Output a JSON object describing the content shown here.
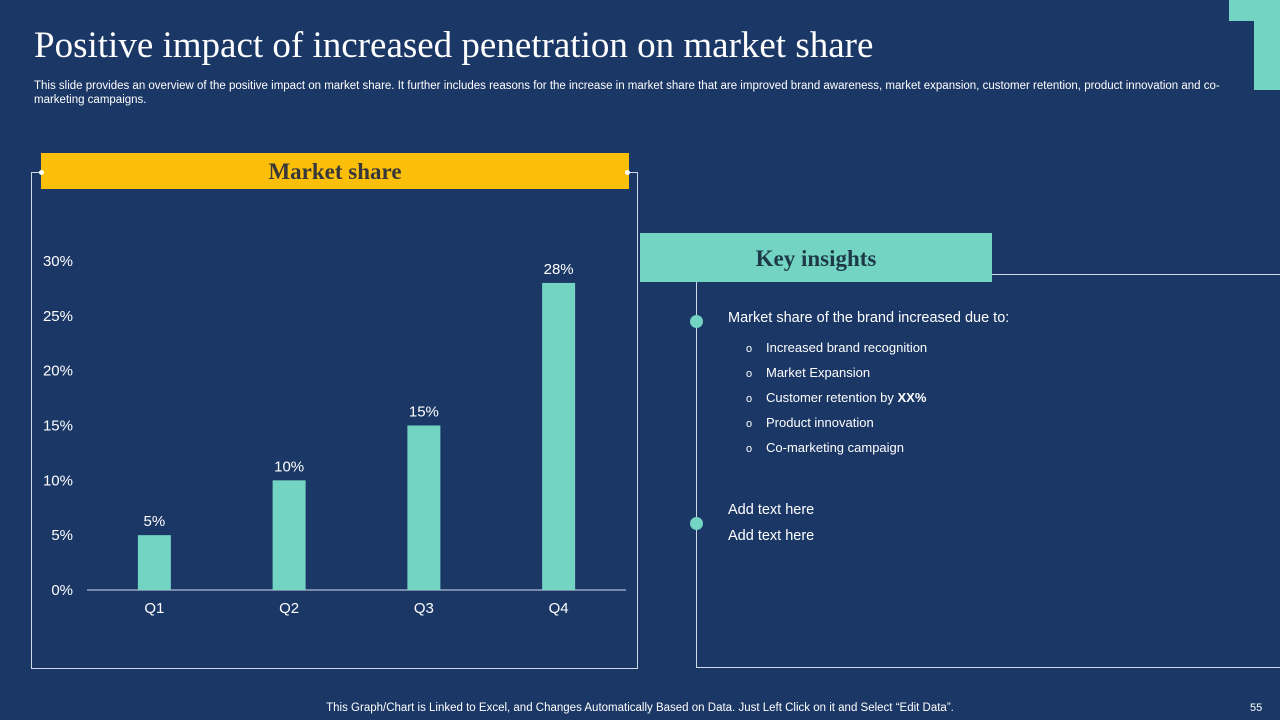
{
  "title": "Positive impact of increased penetration on market share",
  "subtitle": "This slide provides an overview of the positive impact on market share. It further includes reasons for the increase in market share that are improved brand awareness, market expansion, customer retention, product innovation and co-marketing campaigns.",
  "chart_data": {
    "type": "bar",
    "title": "Market share",
    "categories": [
      "Q1",
      "Q2",
      "Q3",
      "Q4"
    ],
    "values": [
      5,
      10,
      15,
      28
    ],
    "data_labels": [
      "5%",
      "10%",
      "15%",
      "28%"
    ],
    "ylim": [
      0,
      30
    ],
    "yticks": [
      0,
      5,
      10,
      15,
      20,
      25,
      30
    ],
    "ytick_labels": [
      "0%",
      "5%",
      "10%",
      "15%",
      "20%",
      "25%",
      "30%"
    ],
    "grid": false,
    "bar_color": "#73d4c3"
  },
  "insights": {
    "header": "Key insights",
    "lead": "Market share of the brand increased due to:",
    "bullet_glyph": "o",
    "items": [
      {
        "text": "Increased brand recognition",
        "strong": ""
      },
      {
        "text": "Market Expansion",
        "strong": ""
      },
      {
        "text": "Customer retention by ",
        "strong": "XX%"
      },
      {
        "text": "Product innovation",
        "strong": ""
      },
      {
        "text": "Co-marketing campaign",
        "strong": ""
      }
    ],
    "notes": [
      "Add text here",
      "Add text here"
    ]
  },
  "footer": "This Graph/Chart is Linked to Excel, and Changes Automatically Based on Data. Just Left Click on it and Select “Edit Data”.",
  "page_number": "55",
  "colors": {
    "background": "#1b3766",
    "accent": "#73d4c3",
    "banner": "#fbbf0a"
  }
}
